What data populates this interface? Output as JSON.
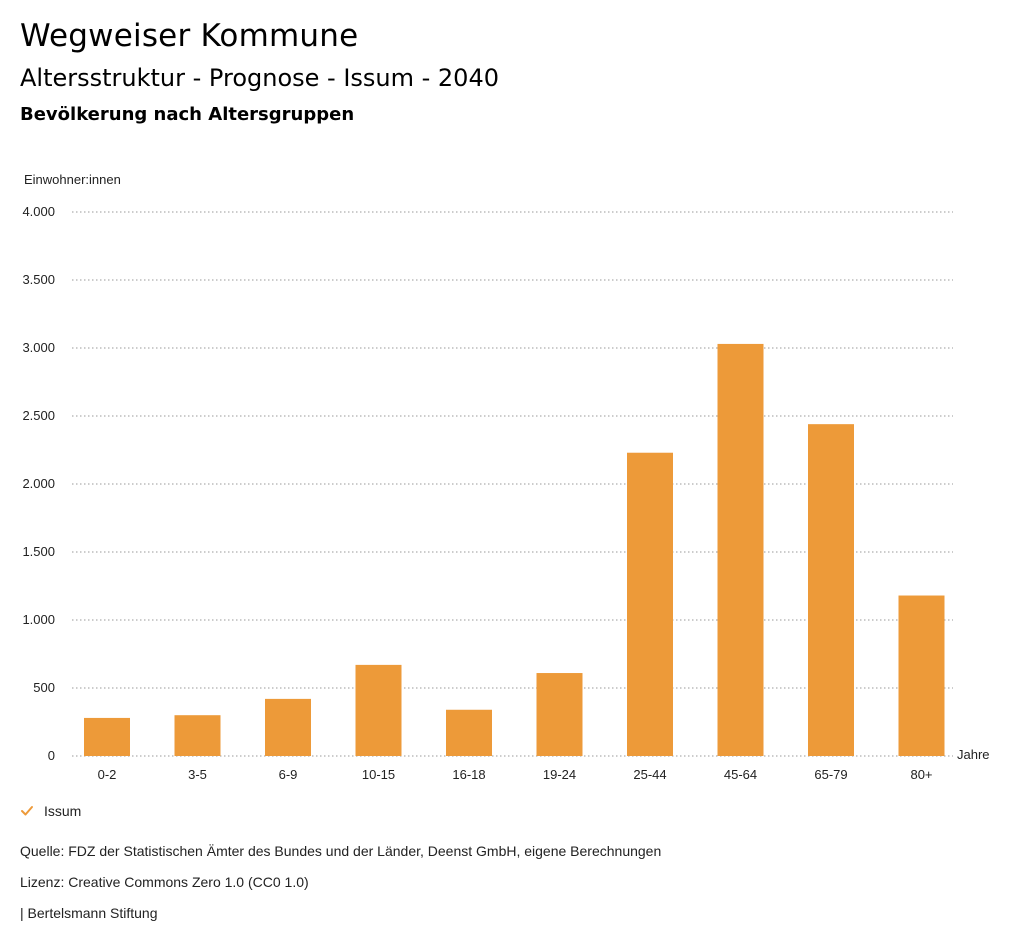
{
  "header": {
    "title": "Wegweiser Kommune",
    "subtitle": "Altersstruktur - Prognose - Issum - 2040",
    "chart_heading": "Bevölkerung nach Altersgruppen"
  },
  "legend": {
    "label": "Issum",
    "icon": "check-icon",
    "color": "#ED9A39"
  },
  "footer": {
    "source": "Quelle: FDZ der Statistischen Ämter des Bundes und der Länder, Deenst GmbH, eigene Berechnungen",
    "license": "Lizenz: Creative Commons Zero 1.0 (CC0 1.0)",
    "publisher": "| Bertelsmann Stiftung"
  },
  "chart_data": {
    "type": "bar",
    "title": "Bevölkerung nach Altersgruppen",
    "ylabel": "Einwohner:innen",
    "xlabel": "Jahre",
    "ylim": [
      0,
      4000
    ],
    "yticks": [
      0,
      500,
      1000,
      1500,
      2000,
      2500,
      3000,
      3500,
      4000
    ],
    "ytick_labels": [
      "0",
      "500",
      "1.000",
      "1.500",
      "2.000",
      "2.500",
      "3.000",
      "3.500",
      "4.000"
    ],
    "grid": true,
    "categories": [
      "0-2",
      "3-5",
      "6-9",
      "10-15",
      "16-18",
      "19-24",
      "25-44",
      "45-64",
      "65-79",
      "80+"
    ],
    "series": [
      {
        "name": "Issum",
        "color": "#ED9A39",
        "values": [
          280,
          300,
          420,
          670,
          340,
          610,
          2230,
          3030,
          2440,
          1180
        ]
      }
    ]
  }
}
